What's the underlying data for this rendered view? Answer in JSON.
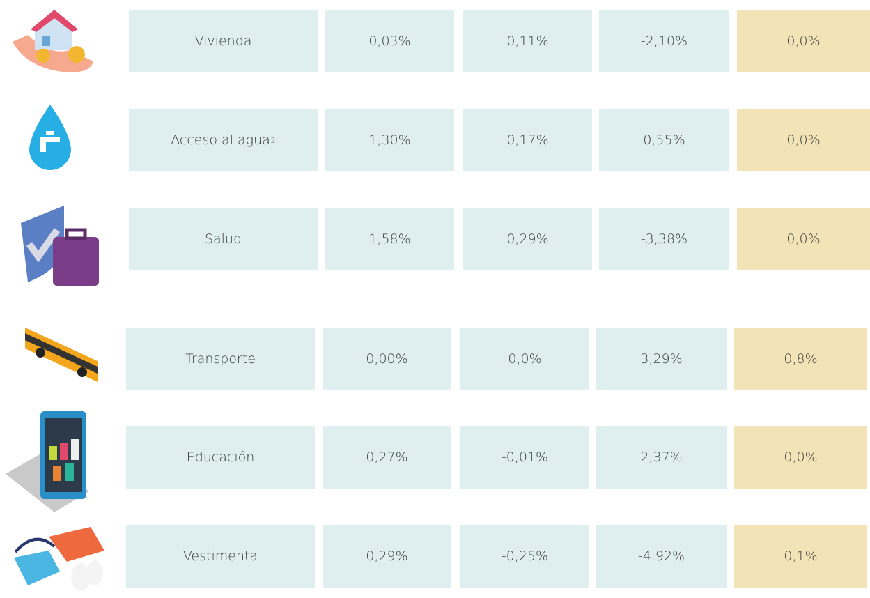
{
  "table": {
    "rows": [
      {
        "label": "Vivienda",
        "cells": [
          "0,03%",
          "0,11%",
          "-2,10%",
          "0,0%"
        ]
      },
      {
        "label": "Acceso al agua",
        "note": "2",
        "cells": [
          "1,30%",
          "0,17%",
          "0,55%",
          "0,0%"
        ]
      },
      {
        "label": "Salud",
        "cells": [
          "1,58%",
          "0,29%",
          "-3,38%",
          "0,0%"
        ]
      },
      {
        "label": "Transporte",
        "cells": [
          "0,00%",
          "0,0%",
          "3,29%",
          "0,8%"
        ]
      },
      {
        "label": "Educación",
        "cells": [
          "0,27%",
          "-0,01%",
          "2,37%",
          "0,0%"
        ]
      },
      {
        "label": "Vestimenta",
        "cells": [
          "0,29%",
          "-0,25%",
          "-4,92%",
          "0,1%"
        ]
      }
    ]
  }
}
